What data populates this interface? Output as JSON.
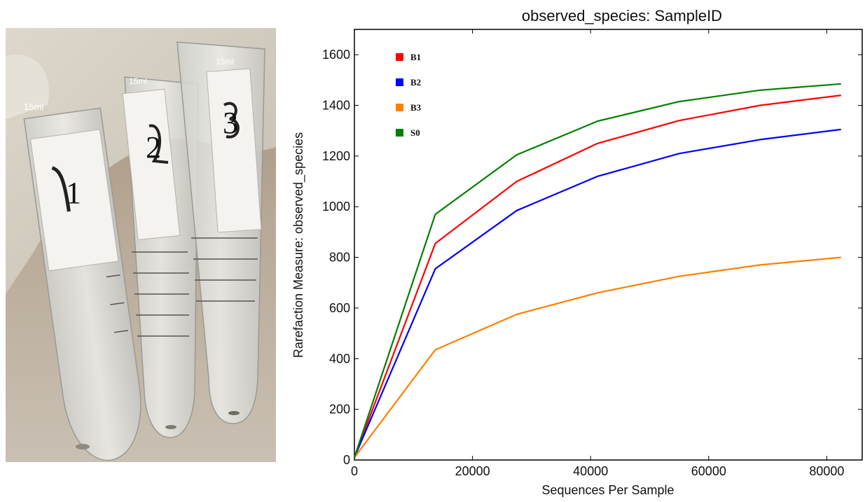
{
  "photo": {
    "tubes": [
      {
        "label": "1",
        "volume_mark": "15ml"
      },
      {
        "label": "2",
        "volume_mark": "15ml"
      },
      {
        "label": "3",
        "volume_mark": "15ml"
      }
    ]
  },
  "chart_data": {
    "type": "line",
    "title": "observed_species: SampleID",
    "xlabel": "Sequences Per Sample",
    "ylabel": "Rarefaction Measure: observed_species",
    "xlim": [
      0,
      86000
    ],
    "ylim": [
      0,
      1700
    ],
    "xticks": [
      0,
      20000,
      40000,
      60000,
      80000
    ],
    "yticks": [
      0,
      200,
      400,
      600,
      800,
      1000,
      1200,
      1400,
      1600
    ],
    "grid": false,
    "legend_position": "top-left",
    "x": [
      0,
      13700,
      27500,
      41200,
      55000,
      68700,
      82400
    ],
    "series": [
      {
        "name": "B1",
        "color": "#ff0000",
        "values": [
          10,
          855,
          1100,
          1250,
          1340,
          1400,
          1440
        ]
      },
      {
        "name": "B2",
        "color": "#0000ff",
        "values": [
          10,
          755,
          985,
          1120,
          1210,
          1265,
          1305
        ]
      },
      {
        "name": "B3",
        "color": "#ff8000",
        "values": [
          10,
          435,
          575,
          660,
          725,
          770,
          800
        ]
      },
      {
        "name": "S0",
        "color": "#008000",
        "values": [
          10,
          970,
          1205,
          1338,
          1415,
          1460,
          1485
        ]
      }
    ]
  }
}
